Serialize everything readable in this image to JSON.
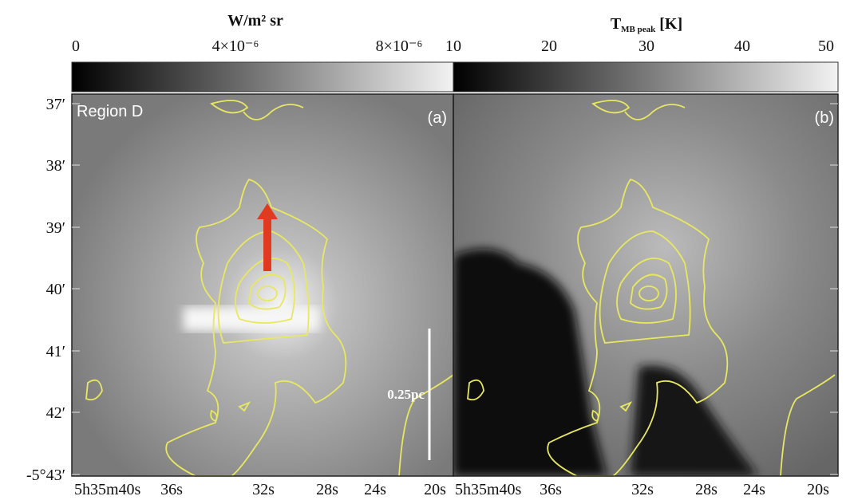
{
  "colorbar_left": {
    "label": "W/m² sr",
    "ticks": [
      "0",
      "4×10⁻⁶",
      "8×10⁻⁶"
    ]
  },
  "colorbar_right": {
    "label_main": "T",
    "label_sub": "MB peak",
    "label_unit": " [K]",
    "ticks": [
      "10",
      "20",
      "30",
      "40",
      "50"
    ]
  },
  "panel_a": {
    "region": "Region D",
    "tag": "(a)",
    "scale_bar": "0.25pc"
  },
  "panel_b": {
    "tag": "(b)"
  },
  "y_axis": {
    "ticks": [
      "37′",
      "38′",
      "39′",
      "40′",
      "41′",
      "42′",
      "-5°43′"
    ]
  },
  "x_axis_a": {
    "ticks": [
      "5h35m40s",
      "36s",
      "32s",
      "28s",
      "24s",
      "20s"
    ]
  },
  "x_axis_b": {
    "ticks": [
      "5h35m40s",
      "36s",
      "32s",
      "28s",
      "24s",
      "20s"
    ]
  }
}
